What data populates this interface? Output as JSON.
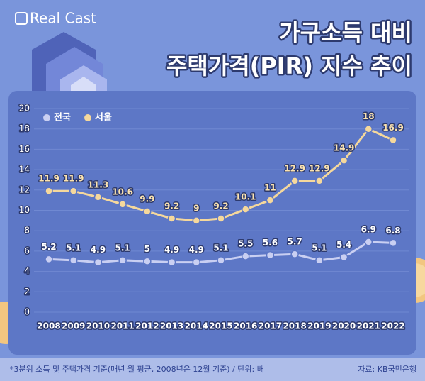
{
  "logo": "Real Cast",
  "chart_data": {
    "type": "line",
    "title": [
      "가구소득 대비",
      "주택가격(PIR) 지수 추이"
    ],
    "categories": [
      "2008",
      "2009",
      "2010",
      "2011",
      "2012",
      "2013",
      "2014",
      "2015",
      "2016",
      "2017",
      "2018",
      "2019",
      "2020",
      "2021",
      "2022"
    ],
    "series": [
      {
        "name": "전국",
        "color": "#c9cff2",
        "values": [
          5.2,
          5.1,
          4.9,
          5.1,
          5,
          4.9,
          4.9,
          5.1,
          5.5,
          5.6,
          5.7,
          5.1,
          5.4,
          6.9,
          6.8
        ]
      },
      {
        "name": "서울",
        "color": "#f5d89c",
        "values": [
          11.9,
          11.9,
          11.3,
          10.6,
          9.9,
          9.2,
          9,
          9.2,
          10.1,
          11,
          12.9,
          12.9,
          14.9,
          18,
          16.9
        ]
      }
    ],
    "ylim": [
      0,
      20
    ],
    "yticks": [
      0,
      2,
      4,
      6,
      8,
      10,
      12,
      14,
      16,
      18,
      20
    ],
    "grid": true,
    "legend": "top-left",
    "footnote": "*3분위 소득 및 주택가격 기준(매년 월 평균, 2008년은 12월 기준) / 단위: 배",
    "source": "자료: KB국민은행"
  }
}
